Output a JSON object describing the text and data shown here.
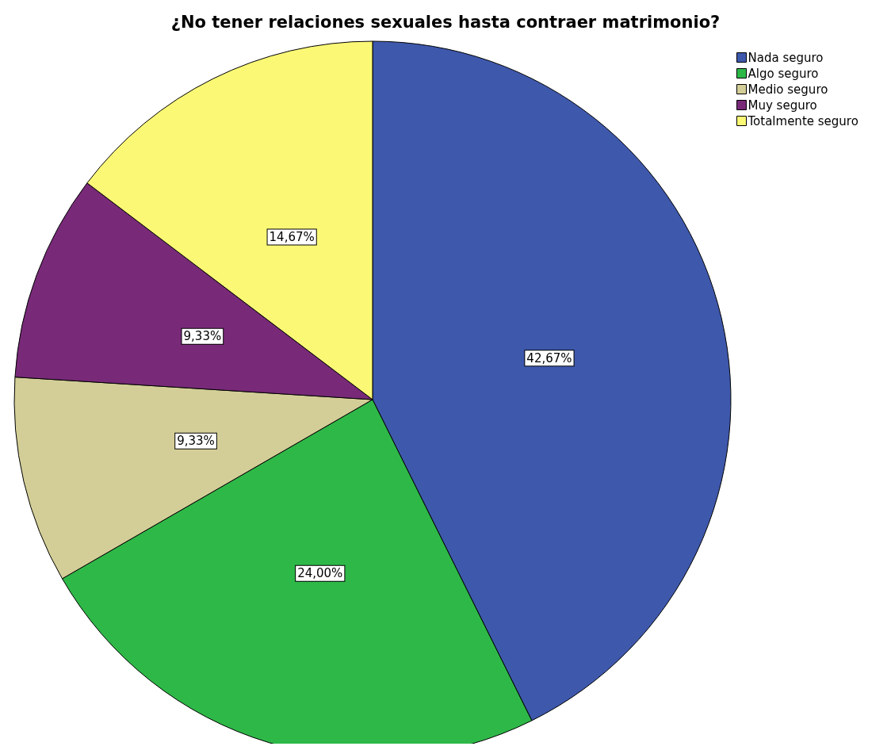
{
  "chart_data": {
    "type": "pie",
    "title": "¿No tener relaciones sexuales hasta contraer matrimonio?",
    "categories": [
      "Nada seguro",
      "Algo seguro",
      "Medio seguro",
      "Muy seguro",
      "Totalmente seguro"
    ],
    "values": [
      42.67,
      24.0,
      9.33,
      9.33,
      14.67
    ],
    "colors": [
      "#3e58ac",
      "#2eb848",
      "#d3ce97",
      "#782a78",
      "#fbf876"
    ],
    "value_labels": [
      "42,67%",
      "24,00%",
      "9,33%",
      "9,33%",
      "14,67%"
    ],
    "legend": "top right"
  }
}
